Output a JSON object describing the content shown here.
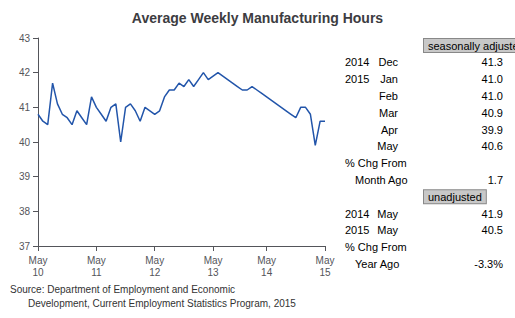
{
  "chart_data": {
    "type": "line",
    "title": "Average Weekly Manufacturing Hours",
    "color": "#2255AA",
    "grid": false,
    "ylim": [
      37,
      43
    ],
    "yticks": [
      37,
      38,
      39,
      40,
      41,
      42,
      43
    ],
    "categories": [
      "May\n10",
      null,
      null,
      null,
      null,
      null,
      null,
      null,
      null,
      null,
      null,
      null,
      "May\n11",
      null,
      null,
      null,
      null,
      null,
      null,
      null,
      null,
      null,
      null,
      null,
      "May\n12",
      null,
      null,
      null,
      null,
      null,
      null,
      null,
      null,
      null,
      null,
      null,
      "May\n13",
      null,
      null,
      null,
      null,
      null,
      null,
      null,
      null,
      null,
      null,
      "May\n14",
      null,
      null,
      null,
      null,
      null,
      null,
      null,
      null,
      null,
      null,
      null,
      "May\n15"
    ],
    "values": [
      40.8,
      40.6,
      40.5,
      41.7,
      41.1,
      40.8,
      40.7,
      40.5,
      40.9,
      40.7,
      40.5,
      41.3,
      41.0,
      40.8,
      40.6,
      41.0,
      41.1,
      40.0,
      41.0,
      41.1,
      40.9,
      40.6,
      41.0,
      40.9,
      40.8,
      40.9,
      41.3,
      41.5,
      41.5,
      41.7,
      41.6,
      41.8,
      41.6,
      41.8,
      42.0,
      41.8,
      41.9,
      42.0,
      41.9,
      41.8,
      41.7,
      41.6,
      41.5,
      41.5,
      41.6,
      41.5,
      41.4,
      41.3,
      41.2,
      41.1,
      41.0,
      40.9,
      40.8,
      40.7,
      41.0,
      41.0,
      40.8,
      39.9,
      40.6,
      40.6
    ],
    "annotations": [
      {
        "heading": "seasonally adjusted"
      },
      {
        "year": "2014",
        "month": "Dec",
        "value": "41.3"
      },
      {
        "year": "2015",
        "month": "Jan",
        "value": "41.0"
      },
      {
        "month": "Feb",
        "value": "41.0"
      },
      {
        "month": "Mar",
        "value": "40.9"
      },
      {
        "month": "Apr",
        "value": "39.9"
      },
      {
        "month": "May",
        "value": "40.6"
      },
      {
        "label": "% Chg From"
      },
      {
        "label": "Month Ago",
        "value": "1.7"
      },
      {
        "heading": "unadjusted"
      },
      {
        "year": "2014",
        "month": "May",
        "value": "41.9"
      },
      {
        "year": "2015",
        "month": "May",
        "value": "40.5"
      },
      {
        "label": "% Chg From"
      },
      {
        "label": "Year Ago",
        "value": "-3.3%"
      }
    ],
    "source": [
      "Source: Department of Employment and Economic",
      "Development, Current Employment Statistics Program, 2015"
    ]
  }
}
